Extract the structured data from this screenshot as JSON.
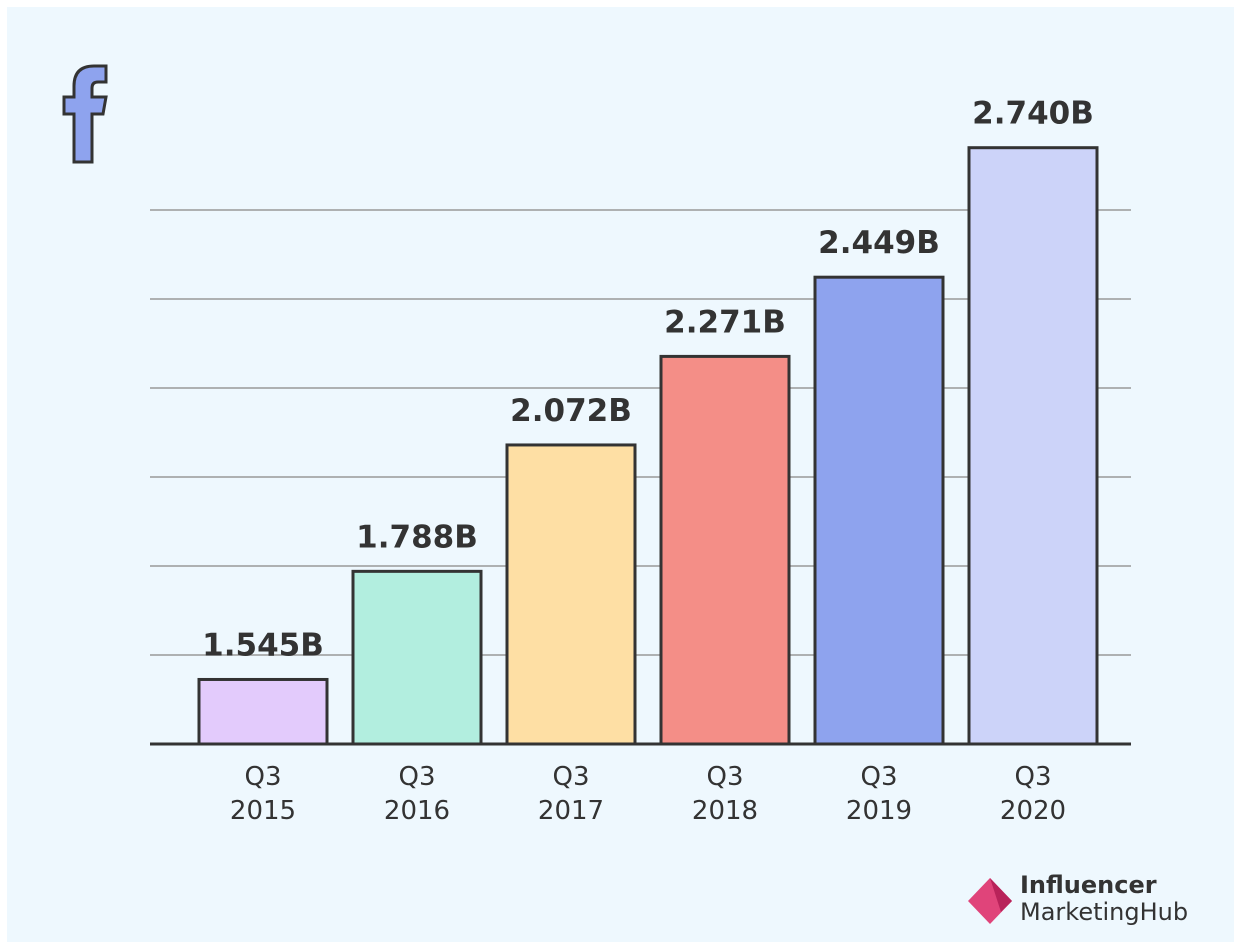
{
  "chart_data": {
    "type": "bar",
    "categories": [
      "Q3 2015",
      "Q3 2016",
      "Q3 2017",
      "Q3 2018",
      "Q3 2019",
      "Q3 2020"
    ],
    "values": [
      1.545,
      1.788,
      2.072,
      2.271,
      2.449,
      2.74
    ],
    "value_labels": [
      "1.545B",
      "1.788B",
      "2.072B",
      "2.271B",
      "2.449B",
      "2.740B"
    ],
    "colors": [
      "#e3cbfc",
      "#b2eedf",
      "#fedfa4",
      "#f48e87",
      "#8ea3ee",
      "#ccd3f9"
    ],
    "ylim": [
      1.4,
      2.8
    ],
    "yticks": [
      1.6,
      1.8,
      2.0,
      2.2,
      2.4,
      2.6
    ],
    "grid": true
  },
  "logo": {
    "line1": "Influencer",
    "line2": "MarketingHub"
  }
}
